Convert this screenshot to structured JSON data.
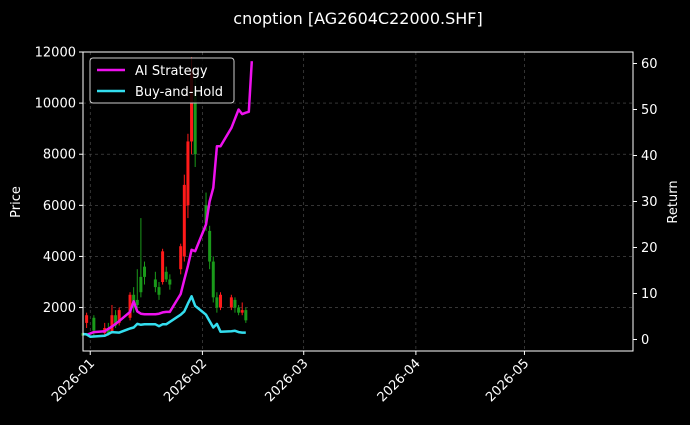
{
  "chart_data": {
    "type": "line",
    "title": "cnoption [AG2604C22000.SHF]",
    "ylabel_left": "Price",
    "ylabel_right": "Return",
    "ylim_left": [
      300,
      12000
    ],
    "ylim_right": [
      -2.5,
      62.5
    ],
    "y_ticks_left": [
      "2000",
      "4000",
      "6000",
      "8000",
      "10000",
      "12000"
    ],
    "y_ticks_right": [
      "0",
      "10",
      "20",
      "30",
      "40",
      "50",
      "60"
    ],
    "x_range": [
      "2025-12-30",
      "2026-05-31"
    ],
    "x_ticks": [
      "2026-01",
      "2026-02",
      "2026-03",
      "2026-04",
      "2026-05"
    ],
    "grid": true,
    "legend_position": "top-left",
    "colors": {
      "background": "#000000",
      "up_candle": "#ff1a1a",
      "down_candle": "#1a9a1a",
      "ai_strategy": "#ee11ee",
      "buy_and_hold": "#33ddee",
      "grid": "#555555"
    },
    "series": [
      {
        "name": "AI Strategy",
        "axis": "right",
        "x": [
          "2025-12-31",
          "2026-01-02",
          "2026-01-05",
          "2026-01-07",
          "2026-01-09",
          "2026-01-12",
          "2026-01-13",
          "2026-01-14",
          "2026-01-15",
          "2026-01-16",
          "2026-01-19",
          "2026-01-20",
          "2026-01-21",
          "2026-01-22",
          "2026-01-23",
          "2026-01-26",
          "2026-01-27",
          "2026-01-28",
          "2026-01-29",
          "2026-01-30",
          "2026-02-02",
          "2026-02-03",
          "2026-02-04",
          "2026-02-05",
          "2026-02-06",
          "2026-02-09",
          "2026-02-10",
          "2026-02-11",
          "2026-02-12",
          "2026-02-13"
        ],
        "values": [
          1.0,
          1.6,
          1.8,
          2.8,
          4.0,
          6.0,
          8.3,
          6.1,
          5.6,
          5.5,
          5.5,
          5.6,
          5.9,
          6.0,
          6.0,
          9.9,
          13.0,
          16.0,
          19.5,
          19.2,
          25.0,
          30.0,
          33.0,
          42.0,
          42.0,
          46.0,
          48.0,
          50.0,
          49.0,
          49.3
        ],
        "tail": [
          49.5,
          60.5
        ]
      },
      {
        "name": "Buy-and-Hold",
        "axis": "right",
        "x": [
          "2025-12-30",
          "2025-12-31",
          "2026-01-01",
          "2026-01-05",
          "2026-01-06",
          "2026-01-07",
          "2026-01-09",
          "2026-01-12",
          "2026-01-13",
          "2026-01-14",
          "2026-01-15",
          "2026-01-16",
          "2026-01-19",
          "2026-01-20",
          "2026-01-21",
          "2026-01-22",
          "2026-01-26",
          "2026-01-27",
          "2026-01-28",
          "2026-01-29",
          "2026-01-30",
          "2026-02-02",
          "2026-02-03",
          "2026-02-04",
          "2026-02-05",
          "2026-02-06",
          "2026-02-09",
          "2026-02-10",
          "2026-02-11",
          "2026-02-12",
          "2026-02-13"
        ],
        "values": [
          1.2,
          1.1,
          0.6,
          0.8,
          1.2,
          1.6,
          1.5,
          2.4,
          2.6,
          3.4,
          3.2,
          3.3,
          3.3,
          2.9,
          3.3,
          3.3,
          5.4,
          6.1,
          7.8,
          9.4,
          7.3,
          5.4,
          4.0,
          2.6,
          3.4,
          1.7,
          1.8,
          1.9,
          1.6,
          1.5,
          1.5
        ]
      }
    ],
    "candles": [
      {
        "x": "2025-12-30",
        "open": 1000,
        "close": 900,
        "high": 1500,
        "low": 800
      },
      {
        "x": "2025-12-31",
        "open": 1400,
        "close": 1700,
        "high": 1800,
        "low": 1200
      },
      {
        "x": "2026-01-02",
        "open": 1600,
        "close": 1100,
        "high": 1700,
        "low": 900
      },
      {
        "x": "2026-01-05",
        "open": 1000,
        "close": 1200,
        "high": 1400,
        "low": 900
      },
      {
        "x": "2026-01-06",
        "open": 1200,
        "close": 1000,
        "high": 1400,
        "low": 900
      },
      {
        "x": "2026-01-07",
        "open": 1000,
        "close": 1700,
        "high": 2100,
        "low": 1000
      },
      {
        "x": "2026-01-08",
        "open": 1700,
        "close": 1300,
        "high": 1900,
        "low": 1200
      },
      {
        "x": "2026-01-09",
        "open": 1400,
        "close": 1900,
        "high": 2000,
        "low": 1300
      },
      {
        "x": "2026-01-12",
        "open": 1600,
        "close": 2500,
        "high": 2600,
        "low": 1500
      },
      {
        "x": "2026-01-13",
        "open": 2500,
        "close": 2000,
        "high": 2800,
        "low": 1800
      },
      {
        "x": "2026-01-14",
        "open": 2300,
        "close": 2100,
        "high": 3500,
        "low": 2000
      },
      {
        "x": "2026-01-15",
        "open": 3200,
        "close": 2600,
        "high": 5500,
        "low": 2400
      },
      {
        "x": "2026-01-16",
        "open": 3600,
        "close": 3200,
        "high": 3800,
        "low": 2900
      },
      {
        "x": "2026-01-19",
        "open": 3100,
        "close": 2800,
        "high": 3400,
        "low": 2600
      },
      {
        "x": "2026-01-20",
        "open": 2800,
        "close": 2500,
        "high": 3000,
        "low": 2300
      },
      {
        "x": "2026-01-21",
        "open": 3000,
        "close": 4200,
        "high": 4300,
        "low": 2900
      },
      {
        "x": "2026-01-22",
        "open": 3400,
        "close": 3100,
        "high": 3600,
        "low": 3000
      },
      {
        "x": "2026-01-23",
        "open": 3100,
        "close": 2900,
        "high": 3300,
        "low": 2700
      },
      {
        "x": "2026-01-26",
        "open": 3500,
        "close": 4400,
        "high": 4500,
        "low": 3300
      },
      {
        "x": "2026-01-27",
        "open": 4000,
        "close": 6800,
        "high": 7200,
        "low": 3800
      },
      {
        "x": "2026-01-28",
        "open": 6000,
        "close": 8500,
        "high": 8800,
        "low": 5500
      },
      {
        "x": "2026-01-29",
        "open": 8500,
        "close": 11200,
        "high": 11800,
        "low": 8000
      },
      {
        "x": "2026-01-30",
        "open": 10500,
        "close": 8000,
        "high": 11000,
        "low": 7500
      },
      {
        "x": "2026-02-02",
        "open": 6000,
        "close": 5300,
        "high": 6500,
        "low": 5000
      },
      {
        "x": "2026-02-03",
        "open": 5000,
        "close": 3800,
        "high": 5200,
        "low": 3500
      },
      {
        "x": "2026-02-04",
        "open": 3800,
        "close": 2400,
        "high": 4000,
        "low": 2200
      },
      {
        "x": "2026-02-05",
        "open": 2400,
        "close": 2000,
        "high": 2600,
        "low": 1800
      },
      {
        "x": "2026-02-06",
        "open": 2000,
        "close": 2500,
        "high": 2600,
        "low": 1900
      },
      {
        "x": "2026-02-09",
        "open": 2000,
        "close": 2400,
        "high": 2500,
        "low": 1900
      },
      {
        "x": "2026-02-10",
        "open": 2300,
        "close": 2000,
        "high": 2400,
        "low": 1800
      },
      {
        "x": "2026-02-11",
        "open": 2000,
        "close": 1800,
        "high": 2100,
        "low": 1700
      },
      {
        "x": "2026-02-12",
        "open": 1800,
        "close": 1900,
        "high": 2200,
        "low": 1700
      },
      {
        "x": "2026-02-13",
        "open": 1900,
        "close": 1500,
        "high": 2000,
        "low": 1400
      }
    ]
  }
}
